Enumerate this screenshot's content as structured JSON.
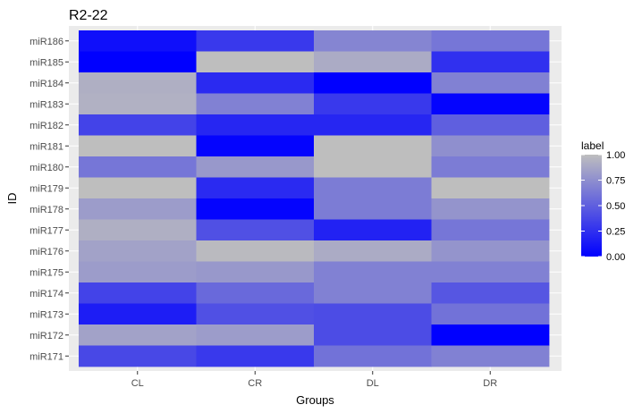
{
  "chart_data": {
    "type": "heatmap",
    "title": "R2-22",
    "xlabel": "Groups",
    "ylabel": "ID",
    "x": [
      "CL",
      "CR",
      "DL",
      "DR"
    ],
    "y": [
      "miR186",
      "miR185",
      "miR184",
      "miR183",
      "miR182",
      "miR181",
      "miR180",
      "miR179",
      "miR178",
      "miR177",
      "miR176",
      "miR175",
      "miR174",
      "miR173",
      "miR172",
      "miR171"
    ],
    "values": [
      [
        0.08,
        0.3,
        0.7,
        0.62
      ],
      [
        0.0,
        1.0,
        0.9,
        0.25
      ],
      [
        0.92,
        0.22,
        0.0,
        0.68
      ],
      [
        0.93,
        0.68,
        0.3,
        0.02
      ],
      [
        0.35,
        0.2,
        0.2,
        0.5
      ],
      [
        1.0,
        0.02,
        1.0,
        0.75
      ],
      [
        0.62,
        0.8,
        1.0,
        0.65
      ],
      [
        1.0,
        0.22,
        0.65,
        1.0
      ],
      [
        0.82,
        0.02,
        0.65,
        0.78
      ],
      [
        0.92,
        0.42,
        0.18,
        0.62
      ],
      [
        0.85,
        0.98,
        0.9,
        0.78
      ],
      [
        0.82,
        0.8,
        0.68,
        0.68
      ],
      [
        0.35,
        0.55,
        0.68,
        0.45
      ],
      [
        0.15,
        0.42,
        0.4,
        0.6
      ],
      [
        0.85,
        0.82,
        0.4,
        0.0
      ],
      [
        0.38,
        0.3,
        0.6,
        0.68
      ]
    ],
    "color_scale": {
      "low": "#0000FF",
      "high": "#BEBEBE",
      "min": 0,
      "max": 1
    },
    "legend": {
      "title": "label",
      "ticks": [
        "0.00",
        "0.25",
        "0.50",
        "0.75",
        "1.00"
      ],
      "placement": "right"
    },
    "background": "#EBEBEB",
    "grid": true
  }
}
